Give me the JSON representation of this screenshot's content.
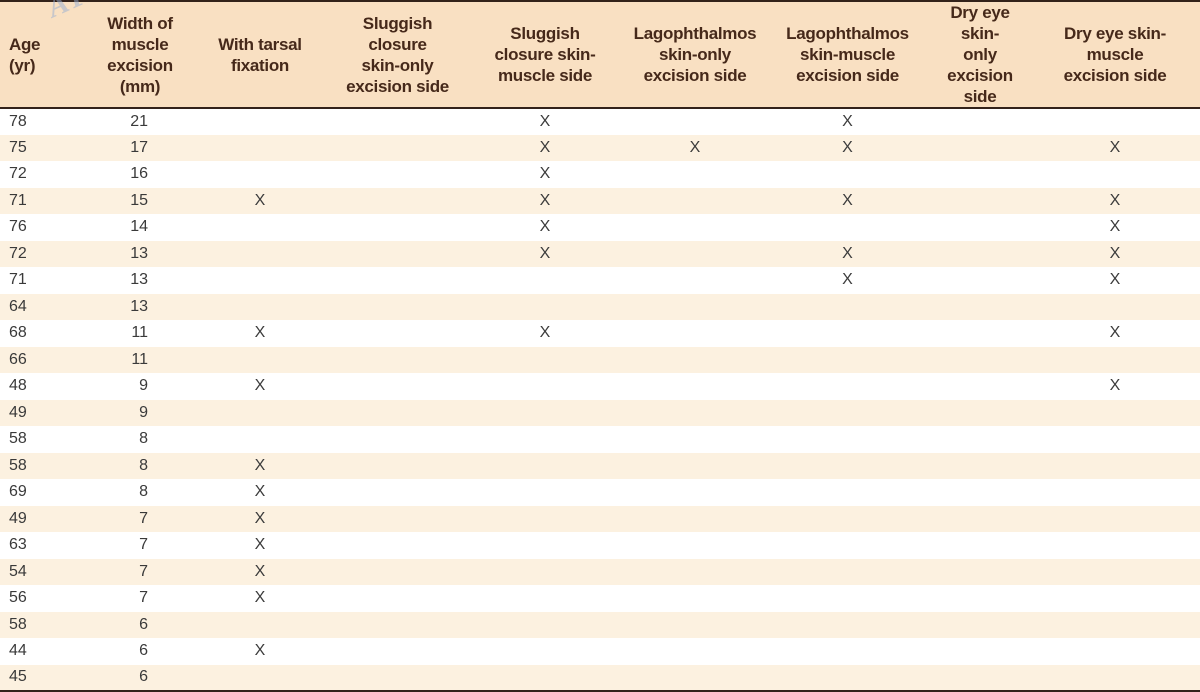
{
  "watermark": {
    "text": "APS"
  },
  "colors": {
    "header_bg": "#f9e0c2",
    "stripe_bg": "#fcf1e0",
    "row_bg": "#ffffff",
    "rule": "#33221a",
    "header_text": "#46291a",
    "body_text": "#3a3a3a"
  },
  "mark_symbol": "X",
  "table": {
    "columns": [
      {
        "id": "age",
        "label": "Age\n(yr)"
      },
      {
        "id": "width",
        "label": "Width of\nmuscle\nexcision (mm)"
      },
      {
        "id": "tarsal",
        "label": "With tarsal\nfixation"
      },
      {
        "id": "sluggish_skin_only",
        "label": "Sluggish closure\nskin-only\nexcision side"
      },
      {
        "id": "sluggish_skin_muscle",
        "label": "Sluggish\nclosure skin-\nmuscle side"
      },
      {
        "id": "lagophthalmos_skin_only",
        "label": "Lagophthalmos\nskin-only\nexcision side"
      },
      {
        "id": "lagophthalmos_skin_muscle",
        "label": "Lagophthalmos\nskin-muscle\nexcision side"
      },
      {
        "id": "dry_eye_skin_only",
        "label": "Dry eye skin-\nonly excision\nside"
      },
      {
        "id": "dry_eye_skin_muscle",
        "label": "Dry eye skin-\nmuscle\nexcision side"
      }
    ],
    "rows": [
      {
        "cells": [
          "78",
          "21",
          "",
          "",
          "X",
          "",
          "X",
          "",
          ""
        ]
      },
      {
        "cells": [
          "75",
          "17",
          "",
          "",
          "X",
          "X",
          "X",
          "",
          "X"
        ]
      },
      {
        "cells": [
          "72",
          "16",
          "",
          "",
          "X",
          "",
          "",
          "",
          ""
        ]
      },
      {
        "cells": [
          "71",
          "15",
          "X",
          "",
          "X",
          "",
          "X",
          "",
          "X"
        ]
      },
      {
        "cells": [
          "76",
          "14",
          "",
          "",
          "X",
          "",
          "",
          "",
          "X"
        ]
      },
      {
        "cells": [
          "72",
          "13",
          "",
          "",
          "X",
          "",
          "X",
          "",
          "X"
        ]
      },
      {
        "cells": [
          "71",
          "13",
          "",
          "",
          "",
          "",
          "X",
          "",
          "X"
        ]
      },
      {
        "cells": [
          "64",
          "13",
          "",
          "",
          "",
          "",
          "",
          "",
          ""
        ]
      },
      {
        "cells": [
          "68",
          "11",
          "X",
          "",
          "X",
          "",
          "",
          "",
          "X"
        ]
      },
      {
        "cells": [
          "66",
          "11",
          "",
          "",
          "",
          "",
          "",
          "",
          ""
        ]
      },
      {
        "cells": [
          "48",
          "9",
          "X",
          "",
          "",
          "",
          "",
          "",
          "X"
        ]
      },
      {
        "cells": [
          "49",
          "9",
          "",
          "",
          "",
          "",
          "",
          "",
          ""
        ]
      },
      {
        "cells": [
          "58",
          "8",
          "",
          "",
          "",
          "",
          "",
          "",
          ""
        ]
      },
      {
        "cells": [
          "58",
          "8",
          "X",
          "",
          "",
          "",
          "",
          "",
          ""
        ]
      },
      {
        "cells": [
          "69",
          "8",
          "X",
          "",
          "",
          "",
          "",
          "",
          ""
        ]
      },
      {
        "cells": [
          "49",
          "7",
          "X",
          "",
          "",
          "",
          "",
          "",
          ""
        ]
      },
      {
        "cells": [
          "63",
          "7",
          "X",
          "",
          "",
          "",
          "",
          "",
          ""
        ]
      },
      {
        "cells": [
          "54",
          "7",
          "X",
          "",
          "",
          "",
          "",
          "",
          ""
        ]
      },
      {
        "cells": [
          "56",
          "7",
          "X",
          "",
          "",
          "",
          "",
          "",
          ""
        ]
      },
      {
        "cells": [
          "58",
          "6",
          "",
          "",
          "",
          "",
          "",
          "",
          ""
        ]
      },
      {
        "cells": [
          "44",
          "6",
          "X",
          "",
          "",
          "",
          "",
          "",
          ""
        ]
      },
      {
        "cells": [
          "45",
          "6",
          "",
          "",
          "",
          "",
          "",
          "",
          ""
        ]
      }
    ]
  }
}
